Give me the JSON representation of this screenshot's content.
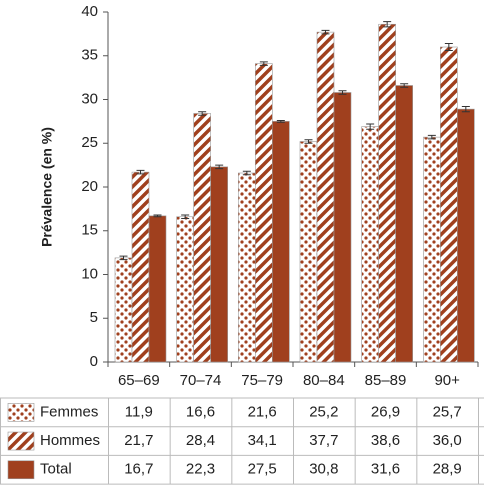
{
  "chart_data": {
    "type": "bar",
    "y_label": "Prévalence (en %)",
    "categories": [
      "65–69",
      "70–74",
      "75–79",
      "80–84",
      "85–89",
      "90+"
    ],
    "ylim": [
      0,
      40
    ],
    "yticks": [
      0,
      5,
      10,
      15,
      20,
      25,
      30,
      35,
      40
    ],
    "grid": false,
    "series": [
      {
        "name": "Femmes",
        "color": "#a0401e",
        "pattern": "dots",
        "values": [
          11.9,
          16.6,
          21.6,
          25.2,
          26.9,
          25.7
        ],
        "value_labels": [
          "11,9",
          "16,6",
          "21,6",
          "25,2",
          "26,9",
          "25,7"
        ],
        "errors": [
          0.2,
          0.2,
          0.2,
          0.2,
          0.3,
          0.2
        ]
      },
      {
        "name": "Hommes",
        "color": "#a0401e",
        "pattern": "hatch",
        "values": [
          21.7,
          28.4,
          34.1,
          37.7,
          38.6,
          36.0
        ],
        "value_labels": [
          "21,7",
          "28,4",
          "34,1",
          "37,7",
          "38,6",
          "36,0"
        ],
        "errors": [
          0.2,
          0.2,
          0.2,
          0.2,
          0.3,
          0.4
        ]
      },
      {
        "name": "Total",
        "color": "#a0401e",
        "pattern": "solid",
        "values": [
          16.7,
          22.3,
          27.5,
          30.8,
          31.6,
          28.9
        ],
        "value_labels": [
          "16,7",
          "22,3",
          "27,5",
          "30,8",
          "31,6",
          "28,9"
        ],
        "errors": [
          0.1,
          0.2,
          0.1,
          0.2,
          0.2,
          0.3
        ]
      }
    ]
  }
}
